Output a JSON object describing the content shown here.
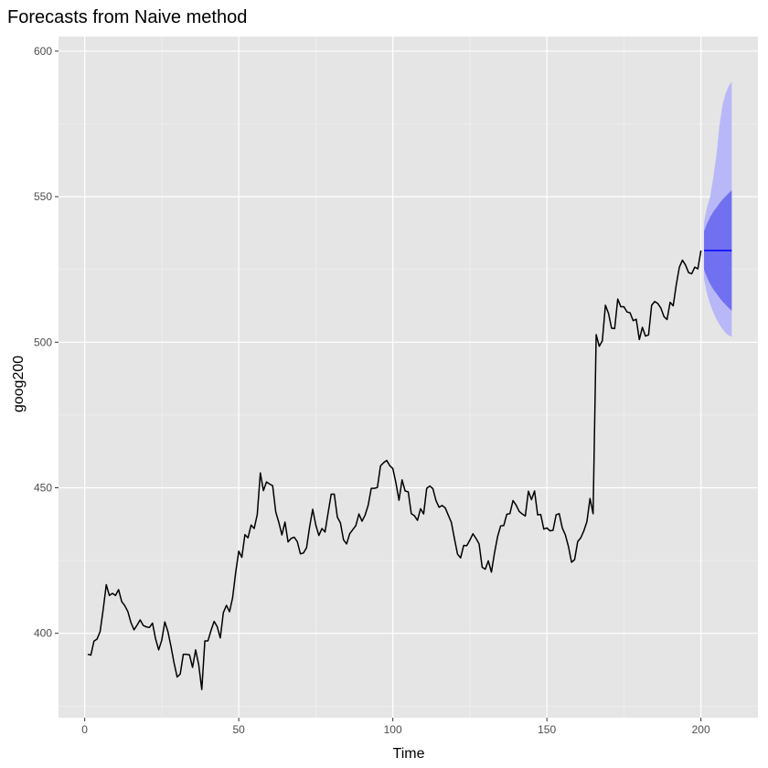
{
  "chart_data": {
    "type": "line",
    "title": "Forecasts from Naive method",
    "xlabel": "Time",
    "ylabel": "goog200",
    "xlim": [
      -8.5,
      218.5
    ],
    "ylim": [
      371,
      605
    ],
    "x_ticks": [
      0,
      50,
      100,
      150,
      200
    ],
    "y_ticks": [
      400,
      450,
      500,
      550,
      600
    ],
    "x_tick_labels": [
      "0",
      "50",
      "100",
      "150",
      "200"
    ],
    "y_tick_labels": [
      "400",
      "450",
      "500",
      "550",
      "600"
    ],
    "grid": true,
    "colors": {
      "panel": "#e5e5e5",
      "series": "#000000",
      "forecast": "#0000ff",
      "pi80": "#7070f0",
      "pi95": "#b8b8f8"
    },
    "series": [
      {
        "x_start": 1,
        "values": [
          392.8,
          392.5,
          397.3,
          398.0,
          400.6,
          408.2,
          416.7,
          413.0,
          413.7,
          413.0,
          415.0,
          410.9,
          409.5,
          407.5,
          403.7,
          401.2,
          402.8,
          404.6,
          402.7,
          402.2,
          402.0,
          403.5,
          398.1,
          394.3,
          397.6,
          403.9,
          400.6,
          395.5,
          389.8,
          385.0,
          386.0,
          392.8,
          392.8,
          392.6,
          388.3,
          394.3,
          389.2,
          380.7,
          397.4,
          397.4,
          401.0,
          404.1,
          402.3,
          398.4,
          407.1,
          409.6,
          407.4,
          412.2,
          420.9,
          428.2,
          426.1,
          433.9,
          432.8,
          437.2,
          436.0,
          440.8,
          455.1,
          449.0,
          452.0,
          451.3,
          450.7,
          441.7,
          438.1,
          433.8,
          438.2,
          431.4,
          432.6,
          433.0,
          431.5,
          427.3,
          427.6,
          429.4,
          436.6,
          442.6,
          437.2,
          433.6,
          436.0,
          434.8,
          441.4,
          447.8,
          447.8,
          439.9,
          437.9,
          432.1,
          430.7,
          434.2,
          435.6,
          437.0,
          441.0,
          438.5,
          440.6,
          444.0,
          449.8,
          449.8,
          450.1,
          457.5,
          458.6,
          459.4,
          457.6,
          456.6,
          451.7,
          445.7,
          452.7,
          448.9,
          448.6,
          441.1,
          440.4,
          438.8,
          442.8,
          441.0,
          449.8,
          450.6,
          449.7,
          445.6,
          443.3,
          443.9,
          443.1,
          440.6,
          438.1,
          432.5,
          427.2,
          425.9,
          430.2,
          430.1,
          432.0,
          434.2,
          432.6,
          430.7,
          422.7,
          422.0,
          424.9,
          421.0,
          427.6,
          433.2,
          436.9,
          437.0,
          440.9,
          441.1,
          445.6,
          444.1,
          441.9,
          441.0,
          440.3,
          448.8,
          445.9,
          448.9,
          440.7,
          440.8,
          435.8,
          436.2,
          435.2,
          435.4,
          440.7,
          441.1,
          436.2,
          433.8,
          429.8,
          424.4,
          425.3,
          431.5,
          432.8,
          435.2,
          438.4,
          446.3,
          441.1,
          502.6,
          498.6,
          500.5,
          512.7,
          509.9,
          504.8,
          504.7,
          514.8,
          512.2,
          512.2,
          510.4,
          510.1,
          507.4,
          507.9,
          500.9,
          505.1,
          502.1,
          502.5,
          512.7,
          514.0,
          513.3,
          511.7,
          508.8,
          507.8,
          513.7,
          512.5,
          519.8,
          525.8,
          528.2,
          526.5,
          523.9,
          523.5,
          525.8,
          525.2,
          531.5
        ]
      }
    ],
    "forecast": {
      "x": [
        201,
        202,
        203,
        204,
        205,
        206,
        207,
        208,
        209,
        210
      ],
      "point": [
        531.5,
        531.5,
        531.5,
        531.5,
        531.5,
        531.5,
        531.5,
        531.5,
        531.5,
        531.5
      ],
      "lo80": [
        524.9,
        522.2,
        520.0,
        518.2,
        516.8,
        515.3,
        514.0,
        512.9,
        511.8,
        510.8
      ],
      "hi80": [
        538.1,
        540.8,
        543.0,
        544.8,
        546.2,
        547.7,
        549.0,
        550.1,
        551.2,
        552.2
      ],
      "lo95": [
        521.7,
        516.5,
        513.0,
        510.3,
        508.0,
        506.1,
        504.5,
        503.2,
        502.3,
        501.9
      ],
      "hi95": [
        541.3,
        546.5,
        550.0,
        556.5,
        564.0,
        574.5,
        581.5,
        585.5,
        588.0,
        589.5
      ]
    }
  }
}
